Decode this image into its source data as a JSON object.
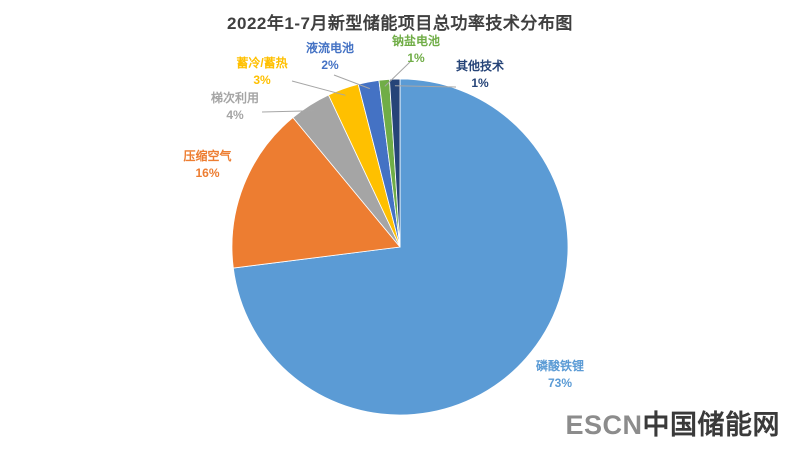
{
  "title": "2022年1-7月新型储能项目总功率技术分布图",
  "watermark": {
    "escn": "ESCN",
    "site": "中国储能网"
  },
  "chart_data": {
    "type": "pie",
    "title": "2022年1-7月新型储能项目总功率技术分布图",
    "start_angle_deg": 0,
    "direction": "clockwise",
    "legend_position": "none",
    "labels_outside_with_leader_lines": true,
    "leader_line_color": "#a6a6a6",
    "slices": [
      {
        "label": "磷酸铁锂",
        "value": 73,
        "pct_label": "73%",
        "color": "#5B9BD5"
      },
      {
        "label": "压缩空气",
        "value": 16,
        "pct_label": "16%",
        "color": "#ED7D31"
      },
      {
        "label": "梯次利用",
        "value": 4,
        "pct_label": "4%",
        "color": "#A5A5A5"
      },
      {
        "label": "蓄冷/蓄热",
        "value": 3,
        "pct_label": "3%",
        "color": "#FFC000"
      },
      {
        "label": "液流电池",
        "value": 2,
        "pct_label": "2%",
        "color": "#4472C4"
      },
      {
        "label": "钠盐电池",
        "value": 1,
        "pct_label": "1%",
        "color": "#70AD47"
      },
      {
        "label": "其他技术",
        "value": 1,
        "pct_label": "1%",
        "color": "#264478"
      }
    ]
  }
}
